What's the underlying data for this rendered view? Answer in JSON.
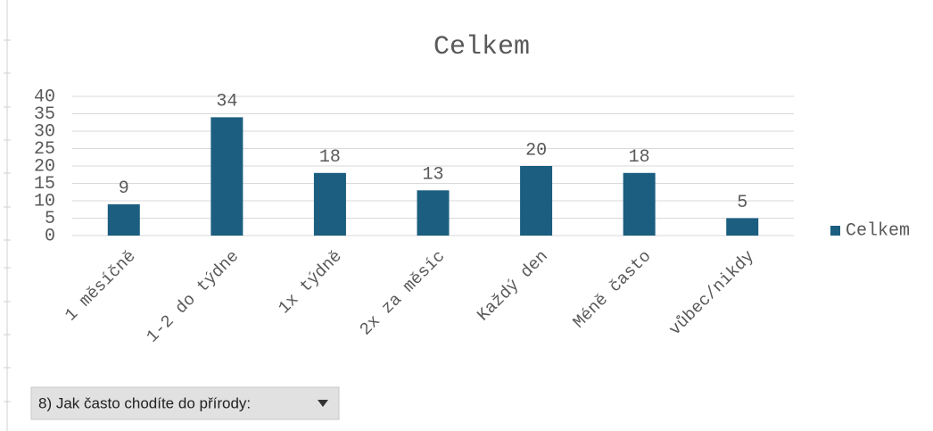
{
  "chart_data": {
    "type": "bar",
    "title": "Celkem",
    "categories": [
      "1 měsíčně",
      "1-2 do týdne",
      "1x týdně",
      "2x za měsíc",
      "Každý den",
      "Méně často",
      "vůbec/nikdy"
    ],
    "series": [
      {
        "name": "Celkem",
        "color": "#1b5e80",
        "values": [
          9,
          34,
          18,
          13,
          20,
          18,
          5
        ]
      }
    ],
    "ylim": [
      0,
      40
    ],
    "yticks": [
      0,
      5,
      10,
      15,
      20,
      25,
      30,
      35,
      40
    ],
    "grid": true,
    "legend": "right"
  },
  "filter_button": {
    "label": "8) Jak často chodíte do přírody:"
  }
}
